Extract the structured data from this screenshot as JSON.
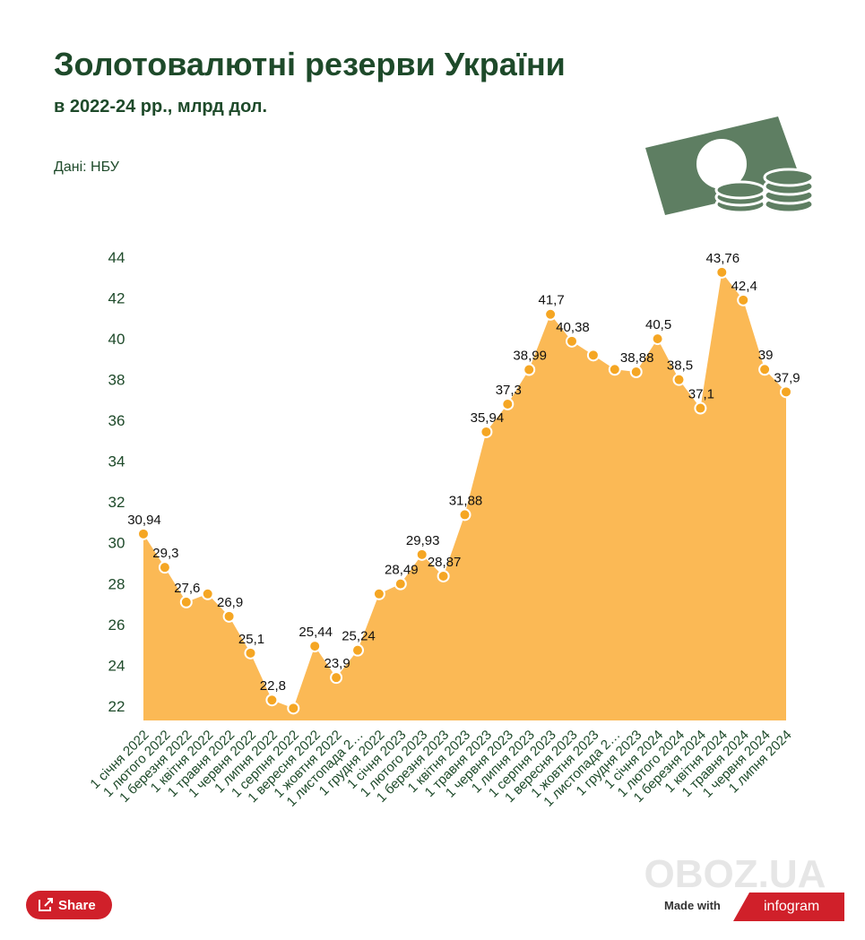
{
  "chart_data": {
    "type": "area",
    "title": "Золотовалютні резерви України",
    "subtitle": "в 2022-24 рр., млрд дол.",
    "source": "Дані: НБУ",
    "categories": [
      "1 січня 2022",
      "1 лютого 2022",
      "1 березня 2022",
      "1 квітня 2022",
      "1 травня 2022",
      "1 червня 2022",
      "1 липня 2022",
      "1 серпня 2022",
      "1 вересня 2022",
      "1 жовтня 2022",
      "1 листопада 2…",
      "1 грудня 2022",
      "1 січня 2023",
      "1 лютого 2023",
      "1 березня 2023",
      "1 квітня 2023",
      "1 травня 2023",
      "1 червня 2023",
      "1 липня 2023",
      "1 серпня 2023",
      "1 вересня 2023",
      "1 жовтня 2023",
      "1 листопада 2…",
      "1 грудня 2023",
      "1 січня 2024",
      "1 лютого 2024",
      "1 березня 2024",
      "1 квітня 2024",
      "1 травня 2024",
      "1 червня 2024",
      "1 липня 2024"
    ],
    "values": [
      30.94,
      29.3,
      27.6,
      28.0,
      26.9,
      25.1,
      22.8,
      22.4,
      25.44,
      23.9,
      25.24,
      28.0,
      28.49,
      29.93,
      28.87,
      31.88,
      35.94,
      37.3,
      38.99,
      41.7,
      40.38,
      39.7,
      39.0,
      38.88,
      40.5,
      38.5,
      37.1,
      43.76,
      42.4,
      39,
      37.9
    ],
    "value_labels": [
      "30,94",
      "29,3",
      "27,6",
      null,
      "26,9",
      "25,1",
      "22,8",
      null,
      "25,44",
      "23,9",
      "25,24",
      null,
      "28,49",
      "29,93",
      "28,87",
      "31,88",
      "35,94",
      "37,3",
      "38,99",
      "41,7",
      "40,38",
      null,
      null,
      "38,88",
      "40,5",
      "38,5",
      "37,1",
      "43,76",
      "42,4",
      "39",
      "37,9"
    ],
    "color": "#fbb955",
    "point_color": "#f5a623",
    "ylim": [
      21.8,
      44.5
    ],
    "yticks": [
      22,
      24,
      26,
      28,
      30,
      32,
      34,
      36,
      38,
      40,
      42,
      44
    ],
    "grid": false
  },
  "footer": {
    "share": "Share",
    "made_with": "Made with",
    "brand": "infogram",
    "watermark": "OBOZ.UA"
  }
}
